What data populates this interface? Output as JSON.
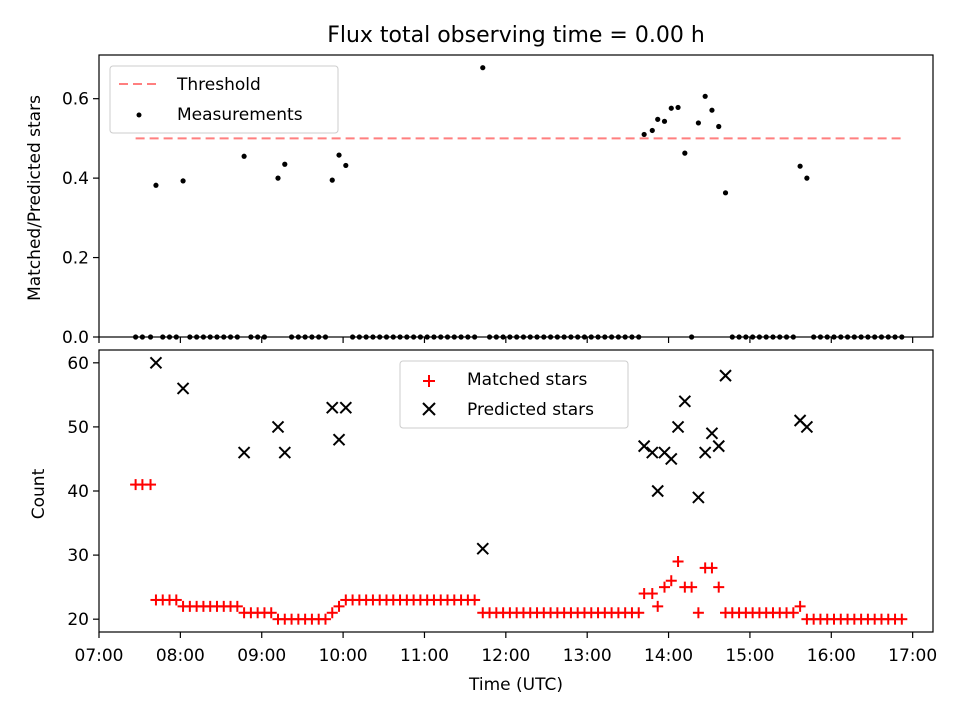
{
  "chart_data": [
    {
      "type": "scatter",
      "title": "Flux total observing time = 0.00 h",
      "xlabel": "",
      "ylabel": "Matched/Predicted stars",
      "ylim": [
        0,
        0.71
      ],
      "yticks": [
        "0.0",
        "0.2",
        "0.4",
        "0.6"
      ],
      "legend_position": "upper-left",
      "threshold": {
        "name": "Threshold",
        "value": 0.5,
        "color": "#ff7f7f",
        "x_start": "07:27",
        "x_end": "16:52"
      },
      "series": [
        {
          "name": "Measurements",
          "color": "#000000",
          "marker": "dot",
          "points": [
            [
              "07:27",
              0
            ],
            [
              "07:32",
              0
            ],
            [
              "07:38",
              0
            ],
            [
              "07:42",
              0.382
            ],
            [
              "07:47",
              0
            ],
            [
              "07:52",
              0
            ],
            [
              "07:57",
              0
            ],
            [
              "08:02",
              0.393
            ],
            [
              "08:07",
              0
            ],
            [
              "08:12",
              0
            ],
            [
              "08:17",
              0
            ],
            [
              "08:22",
              0
            ],
            [
              "08:27",
              0
            ],
            [
              "08:32",
              0
            ],
            [
              "08:37",
              0
            ],
            [
              "08:42",
              0
            ],
            [
              "08:47",
              0.455
            ],
            [
              "08:52",
              0
            ],
            [
              "08:57",
              0
            ],
            [
              "09:02",
              0
            ],
            [
              "09:12",
              0.4
            ],
            [
              "09:17",
              0.435
            ],
            [
              "09:22",
              0
            ],
            [
              "09:27",
              0
            ],
            [
              "09:32",
              0
            ],
            [
              "09:37",
              0
            ],
            [
              "09:42",
              0
            ],
            [
              "09:47",
              0
            ],
            [
              "09:52",
              0.395
            ],
            [
              "09:57",
              0.458
            ],
            [
              "10:02",
              0.432
            ],
            [
              "10:07",
              0
            ],
            [
              "10:12",
              0
            ],
            [
              "10:17",
              0
            ],
            [
              "10:22",
              0
            ],
            [
              "10:27",
              0
            ],
            [
              "10:32",
              0
            ],
            [
              "10:37",
              0
            ],
            [
              "10:42",
              0
            ],
            [
              "10:47",
              0
            ],
            [
              "10:52",
              0
            ],
            [
              "10:57",
              0
            ],
            [
              "11:02",
              0
            ],
            [
              "11:07",
              0
            ],
            [
              "11:12",
              0
            ],
            [
              "11:17",
              0
            ],
            [
              "11:22",
              0
            ],
            [
              "11:27",
              0
            ],
            [
              "11:32",
              0
            ],
            [
              "11:37",
              0
            ],
            [
              "11:43",
              0.678
            ],
            [
              "11:48",
              0
            ],
            [
              "11:53",
              0
            ],
            [
              "11:58",
              0
            ],
            [
              "12:03",
              0
            ],
            [
              "12:08",
              0
            ],
            [
              "12:13",
              0
            ],
            [
              "12:18",
              0
            ],
            [
              "12:23",
              0
            ],
            [
              "12:28",
              0
            ],
            [
              "12:33",
              0
            ],
            [
              "12:38",
              0
            ],
            [
              "12:43",
              0
            ],
            [
              "12:48",
              0
            ],
            [
              "12:53",
              0
            ],
            [
              "12:58",
              0
            ],
            [
              "13:03",
              0
            ],
            [
              "13:08",
              0
            ],
            [
              "13:13",
              0
            ],
            [
              "13:18",
              0
            ],
            [
              "13:23",
              0
            ],
            [
              "13:28",
              0
            ],
            [
              "13:33",
              0
            ],
            [
              "13:38",
              0
            ],
            [
              "13:42",
              0.51
            ],
            [
              "13:48",
              0.52
            ],
            [
              "13:52",
              0.548
            ],
            [
              "13:57",
              0.543
            ],
            [
              "14:02",
              0.576
            ],
            [
              "14:07",
              0.578
            ],
            [
              "14:12",
              0.463
            ],
            [
              "14:17",
              0
            ],
            [
              "14:22",
              0.539
            ],
            [
              "14:27",
              0.606
            ],
            [
              "14:32",
              0.571
            ],
            [
              "14:37",
              0.53
            ],
            [
              "14:42",
              0.363
            ],
            [
              "14:47",
              0
            ],
            [
              "14:52",
              0
            ],
            [
              "14:57",
              0
            ],
            [
              "15:02",
              0
            ],
            [
              "15:07",
              0
            ],
            [
              "15:12",
              0
            ],
            [
              "15:17",
              0
            ],
            [
              "15:22",
              0
            ],
            [
              "15:27",
              0
            ],
            [
              "15:32",
              0
            ],
            [
              "15:37",
              0.43
            ],
            [
              "15:42",
              0.4
            ],
            [
              "15:47",
              0
            ],
            [
              "15:52",
              0
            ],
            [
              "15:57",
              0
            ],
            [
              "16:02",
              0
            ],
            [
              "16:07",
              0
            ],
            [
              "16:12",
              0
            ],
            [
              "16:17",
              0
            ],
            [
              "16:22",
              0
            ],
            [
              "16:27",
              0
            ],
            [
              "16:32",
              0
            ],
            [
              "16:37",
              0
            ],
            [
              "16:42",
              0
            ],
            [
              "16:47",
              0
            ],
            [
              "16:52",
              0
            ]
          ]
        }
      ]
    },
    {
      "type": "scatter",
      "title": "",
      "xlabel": "Time (UTC)",
      "ylabel": "Count",
      "ylim": [
        18,
        62
      ],
      "yticks": [
        "20",
        "30",
        "40",
        "50",
        "60"
      ],
      "xlim": [
        "07:00",
        "17:15"
      ],
      "xticks": [
        "07:00",
        "08:00",
        "09:00",
        "10:00",
        "11:00",
        "12:00",
        "13:00",
        "14:00",
        "15:00",
        "16:00",
        "17:00"
      ],
      "legend_position": "upper-center",
      "series": [
        {
          "name": "Matched stars",
          "color": "#ff0000",
          "marker": "plus",
          "points": [
            [
              "07:27",
              41
            ],
            [
              "07:32",
              41
            ],
            [
              "07:38",
              41
            ],
            [
              "07:42",
              23
            ],
            [
              "07:47",
              23
            ],
            [
              "07:52",
              23
            ],
            [
              "07:57",
              23
            ],
            [
              "08:02",
              22
            ],
            [
              "08:07",
              22
            ],
            [
              "08:12",
              22
            ],
            [
              "08:17",
              22
            ],
            [
              "08:22",
              22
            ],
            [
              "08:27",
              22
            ],
            [
              "08:32",
              22
            ],
            [
              "08:37",
              22
            ],
            [
              "08:42",
              22
            ],
            [
              "08:47",
              21
            ],
            [
              "08:52",
              21
            ],
            [
              "08:57",
              21
            ],
            [
              "09:02",
              21
            ],
            [
              "09:07",
              21
            ],
            [
              "09:12",
              20
            ],
            [
              "09:17",
              20
            ],
            [
              "09:22",
              20
            ],
            [
              "09:27",
              20
            ],
            [
              "09:32",
              20
            ],
            [
              "09:37",
              20
            ],
            [
              "09:42",
              20
            ],
            [
              "09:47",
              20
            ],
            [
              "09:52",
              21
            ],
            [
              "09:57",
              22
            ],
            [
              "10:02",
              23
            ],
            [
              "10:07",
              23
            ],
            [
              "10:12",
              23
            ],
            [
              "10:17",
              23
            ],
            [
              "10:22",
              23
            ],
            [
              "10:27",
              23
            ],
            [
              "10:32",
              23
            ],
            [
              "10:37",
              23
            ],
            [
              "10:42",
              23
            ],
            [
              "10:47",
              23
            ],
            [
              "10:52",
              23
            ],
            [
              "10:57",
              23
            ],
            [
              "11:02",
              23
            ],
            [
              "11:07",
              23
            ],
            [
              "11:12",
              23
            ],
            [
              "11:17",
              23
            ],
            [
              "11:22",
              23
            ],
            [
              "11:27",
              23
            ],
            [
              "11:32",
              23
            ],
            [
              "11:37",
              23
            ],
            [
              "11:43",
              21
            ],
            [
              "11:48",
              21
            ],
            [
              "11:53",
              21
            ],
            [
              "11:58",
              21
            ],
            [
              "12:03",
              21
            ],
            [
              "12:08",
              21
            ],
            [
              "12:13",
              21
            ],
            [
              "12:18",
              21
            ],
            [
              "12:23",
              21
            ],
            [
              "12:28",
              21
            ],
            [
              "12:33",
              21
            ],
            [
              "12:38",
              21
            ],
            [
              "12:43",
              21
            ],
            [
              "12:48",
              21
            ],
            [
              "12:53",
              21
            ],
            [
              "12:58",
              21
            ],
            [
              "13:03",
              21
            ],
            [
              "13:08",
              21
            ],
            [
              "13:13",
              21
            ],
            [
              "13:18",
              21
            ],
            [
              "13:23",
              21
            ],
            [
              "13:28",
              21
            ],
            [
              "13:33",
              21
            ],
            [
              "13:38",
              21
            ],
            [
              "13:42",
              24
            ],
            [
              "13:48",
              24
            ],
            [
              "13:52",
              22
            ],
            [
              "13:57",
              25
            ],
            [
              "14:02",
              26
            ],
            [
              "14:07",
              29
            ],
            [
              "14:12",
              25
            ],
            [
              "14:17",
              25
            ],
            [
              "14:22",
              21
            ],
            [
              "14:27",
              28
            ],
            [
              "14:32",
              28
            ],
            [
              "14:37",
              25
            ],
            [
              "14:42",
              21
            ],
            [
              "14:47",
              21
            ],
            [
              "14:52",
              21
            ],
            [
              "14:57",
              21
            ],
            [
              "15:02",
              21
            ],
            [
              "15:07",
              21
            ],
            [
              "15:12",
              21
            ],
            [
              "15:17",
              21
            ],
            [
              "15:22",
              21
            ],
            [
              "15:27",
              21
            ],
            [
              "15:32",
              21
            ],
            [
              "15:37",
              22
            ],
            [
              "15:42",
              20
            ],
            [
              "15:47",
              20
            ],
            [
              "15:52",
              20
            ],
            [
              "15:57",
              20
            ],
            [
              "16:02",
              20
            ],
            [
              "16:07",
              20
            ],
            [
              "16:12",
              20
            ],
            [
              "16:17",
              20
            ],
            [
              "16:22",
              20
            ],
            [
              "16:27",
              20
            ],
            [
              "16:32",
              20
            ],
            [
              "16:37",
              20
            ],
            [
              "16:42",
              20
            ],
            [
              "16:47",
              20
            ],
            [
              "16:52",
              20
            ]
          ]
        },
        {
          "name": "Predicted stars",
          "color": "#000000",
          "marker": "cross",
          "points": [
            [
              "07:42",
              60
            ],
            [
              "08:02",
              56
            ],
            [
              "08:47",
              46
            ],
            [
              "09:12",
              50
            ],
            [
              "09:17",
              46
            ],
            [
              "09:52",
              53
            ],
            [
              "09:57",
              48
            ],
            [
              "10:02",
              53
            ],
            [
              "11:43",
              31
            ],
            [
              "13:42",
              47
            ],
            [
              "13:48",
              46
            ],
            [
              "13:52",
              40
            ],
            [
              "13:57",
              46
            ],
            [
              "14:02",
              45
            ],
            [
              "14:07",
              50
            ],
            [
              "14:12",
              54
            ],
            [
              "14:22",
              39
            ],
            [
              "14:27",
              46
            ],
            [
              "14:32",
              49
            ],
            [
              "14:37",
              47
            ],
            [
              "14:42",
              58
            ],
            [
              "15:37",
              51
            ],
            [
              "15:42",
              50
            ]
          ]
        }
      ]
    }
  ]
}
